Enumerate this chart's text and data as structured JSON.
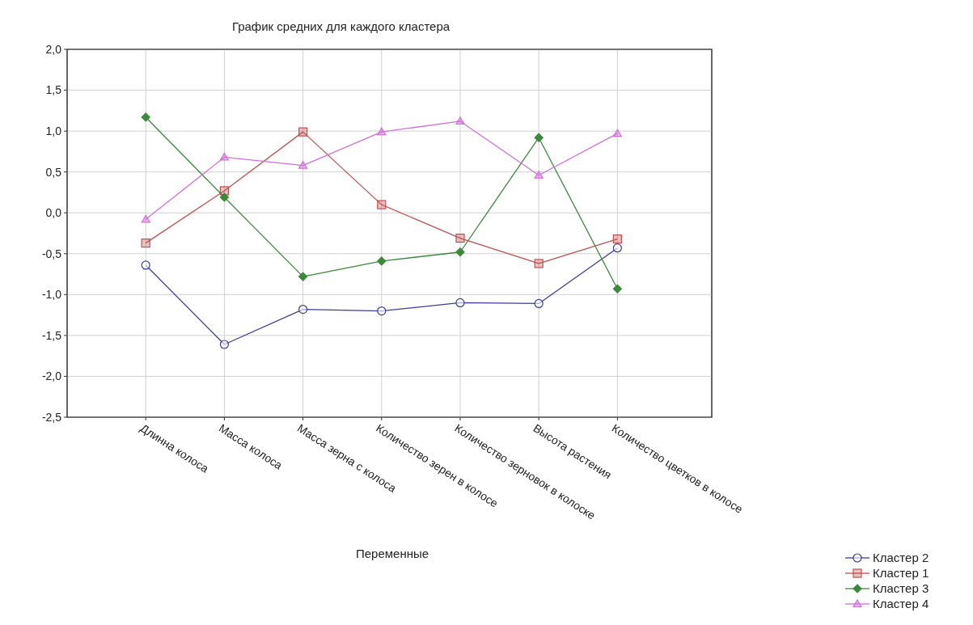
{
  "chart_data": {
    "type": "line",
    "title": "График средних для каждого кластера",
    "xlabel": "Переменные",
    "categories": [
      "Длинна колоса",
      "Масса колоса",
      "Масса зерна с колоса",
      "Количество зерен в колосе",
      "Количество зерновок в колоске",
      "Высота растения",
      "Количество цветков в колосе"
    ],
    "ylim": [
      -2.5,
      2.0
    ],
    "yticks": [
      {
        "value": -2.5,
        "label": "-2,5"
      },
      {
        "value": -2.0,
        "label": "-2,0"
      },
      {
        "value": -1.5,
        "label": "-1,5"
      },
      {
        "value": -1.0,
        "label": "-1,0"
      },
      {
        "value": -0.5,
        "label": "-0,5"
      },
      {
        "value": 0,
        "label": "0,0"
      },
      {
        "value": 0.5,
        "label": "0,5"
      },
      {
        "value": 1.0,
        "label": "1,0"
      },
      {
        "value": 1.5,
        "label": "1,5"
      },
      {
        "value": 2.0,
        "label": "2,0"
      }
    ],
    "grid": true,
    "legend": "bottom right",
    "series": [
      {
        "name": "Кластер 2",
        "color": "#3c3c9c",
        "marker": "circle",
        "values": [
          -0.64,
          -1.61,
          -1.18,
          -1.2,
          -1.1,
          -1.11,
          -0.43
        ]
      },
      {
        "name": "Кластер 1",
        "color": "#c0504d",
        "marker": "square",
        "values": [
          -0.37,
          0.27,
          0.99,
          0.1,
          -0.31,
          -0.62,
          -0.32
        ]
      },
      {
        "name": "Кластер 3",
        "color": "#3a8a3a",
        "marker": "diamond",
        "values": [
          1.17,
          0.19,
          -0.78,
          -0.59,
          -0.48,
          0.92,
          -0.93
        ]
      },
      {
        "name": "Кластер 4",
        "color": "#d070d8",
        "marker": "triangle",
        "values": [
          -0.08,
          0.68,
          0.58,
          0.99,
          1.12,
          0.46,
          0.97
        ]
      }
    ]
  }
}
